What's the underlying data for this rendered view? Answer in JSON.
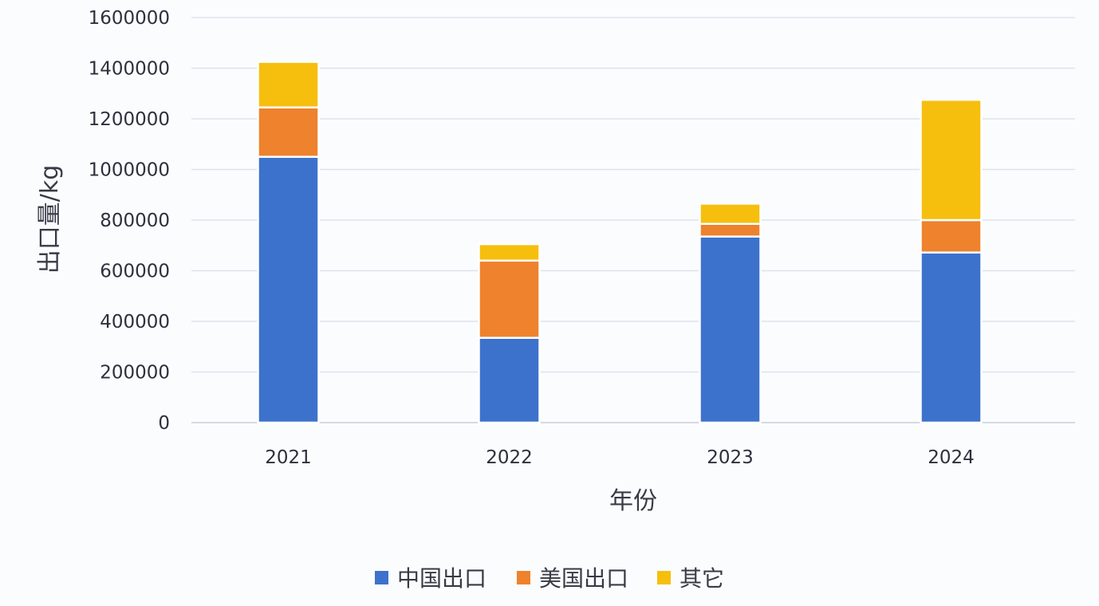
{
  "chart_data": {
    "type": "bar",
    "stacked": true,
    "categories": [
      "2021",
      "2022",
      "2023",
      "2024"
    ],
    "series": [
      {
        "name": "中国出口",
        "color": "#3d72cc",
        "values": [
          1050000,
          335000,
          735000,
          672000
        ]
      },
      {
        "name": "美国出口",
        "color": "#ee822d",
        "values": [
          195000,
          305000,
          50000,
          128000
        ]
      },
      {
        "name": "其它",
        "color": "#f6bf0e",
        "values": [
          180000,
          65000,
          80000,
          475000
        ]
      }
    ],
    "xlabel": "年份",
    "ylabel": "出口量/kg",
    "ylim": [
      0,
      1600000
    ],
    "yticks": [
      "0",
      "200000",
      "400000",
      "600000",
      "800000",
      "1000000",
      "1200000",
      "1400000",
      "1600000"
    ],
    "grid": true,
    "legend": "bottom"
  }
}
